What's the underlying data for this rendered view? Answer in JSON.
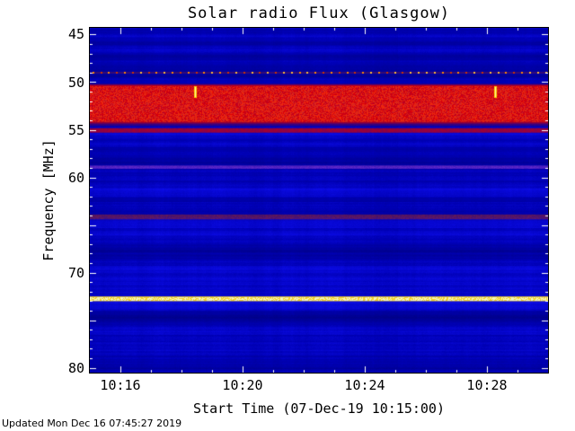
{
  "page": {
    "updated_text": "Updated Mon Dec 16 07:45:27 2019"
  },
  "chart_data": {
    "type": "heatmap",
    "title": "Solar radio Flux (Glasgow)",
    "xlabel": "Start Time (07-Dec-19 10:15:00)",
    "ylabel": "Frequency [MHz]",
    "start_time": "10:15",
    "x_tick_labels": [
      "10:16",
      "10:20",
      "10:24",
      "10:28"
    ],
    "x_tick_minutes": [
      1,
      5,
      9,
      13
    ],
    "x_range_minutes": [
      0,
      15
    ],
    "y_tick_labels": [
      "45",
      "50",
      "55",
      "60",
      "70",
      "80"
    ],
    "y_tick_freqs": [
      45,
      50,
      55,
      60,
      70,
      80
    ],
    "y_range_mhz": [
      44.3,
      80.5
    ],
    "background_color": "#0000B4",
    "features": {
      "dotted_carrier": {
        "freq": 48.9,
        "colors": [
          "#ff8800",
          "#cc3300"
        ],
        "spacing_minutes": 0.26,
        "dot_w": 2,
        "dot_h": 2
      },
      "bands": [
        {
          "name": "strong-red-band",
          "f0": 50.4,
          "f1": 54.2,
          "color": "#e60000",
          "core_color": "#ff2a00",
          "alpha": 0.97,
          "edge": 0.25,
          "noise": 0.18
        },
        {
          "name": "band-lower-fringe",
          "f0": 54.2,
          "f1": 54.55,
          "color": "#7a0040",
          "alpha": 0.45,
          "edge": 0.1,
          "noise": 0.3
        },
        {
          "name": "red-line-55",
          "f0": 54.9,
          "f1": 55.25,
          "color": "#d40000",
          "alpha": 0.8,
          "edge": 0.12,
          "noise": 0.25
        },
        {
          "name": "magenta-line-59",
          "f0": 58.8,
          "f1": 59.05,
          "color": "#b24acc",
          "alpha": 0.55,
          "edge": 0.08,
          "noise": 0.3
        },
        {
          "name": "maroon-line-64",
          "f0": 63.95,
          "f1": 64.35,
          "color": "#cc3300",
          "alpha": 0.5,
          "edge": 0.1,
          "noise": 0.35
        },
        {
          "name": "yellow-line-72-7",
          "f0": 72.55,
          "f1": 72.95,
          "color": "#ffdd22",
          "core_color": "#ffffbb",
          "alpha": 0.98,
          "edge": 0.1,
          "noise": 0.05
        }
      ],
      "bursts": [
        {
          "minute": 3.45,
          "f0": 50.45,
          "f1": 51.7,
          "color": "#ffd400"
        },
        {
          "minute": 13.25,
          "f0": 50.45,
          "f1": 51.7,
          "color": "#ffd400"
        }
      ],
      "shade_bands": [
        {
          "f0": 47.2,
          "f1": 47.7,
          "delta": -0.1
        },
        {
          "f0": 56.2,
          "f1": 56.8,
          "delta": 0.1
        },
        {
          "f0": 60.3,
          "f1": 61.2,
          "delta": -0.12
        },
        {
          "f0": 62.0,
          "f1": 62.6,
          "delta": -0.1
        },
        {
          "f0": 65.3,
          "f1": 66.3,
          "delta": -0.1
        },
        {
          "f0": 67.3,
          "f1": 68.0,
          "delta": -0.08
        },
        {
          "f0": 69.3,
          "f1": 69.9,
          "delta": 0.08
        },
        {
          "f0": 74.0,
          "f1": 74.8,
          "delta": -0.1
        },
        {
          "f0": 76.5,
          "f1": 77.3,
          "delta": -0.08
        },
        {
          "f0": 78.2,
          "f1": 78.9,
          "delta": -0.08
        }
      ],
      "shade_columns": [
        {
          "m0": 9.3,
          "m1": 10.1,
          "delta": -0.06
        },
        {
          "m0": 6.0,
          "m1": 6.3,
          "delta": -0.04
        }
      ]
    }
  }
}
